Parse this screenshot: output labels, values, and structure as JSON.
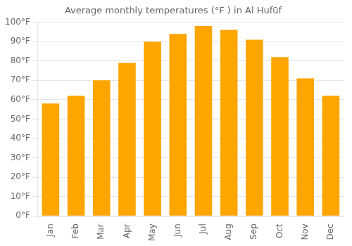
{
  "chart_data": {
    "type": "bar",
    "title": "Average monthly temperatures (°F ) in Al Hufūf",
    "categories": [
      "Jan",
      "Feb",
      "Mar",
      "Apr",
      "May",
      "Jun",
      "Jul",
      "Aug",
      "Sep",
      "Oct",
      "Nov",
      "Dec"
    ],
    "values": [
      58,
      62,
      70,
      79,
      90,
      94,
      98,
      96,
      91,
      82,
      71,
      62
    ],
    "color": "#FFA500",
    "ylim": [
      0,
      100
    ],
    "yticks": [
      {
        "value": 0,
        "label": "0°F"
      },
      {
        "value": 10,
        "label": "10°F"
      },
      {
        "value": 20,
        "label": "20°F"
      },
      {
        "value": 30,
        "label": "30°F"
      },
      {
        "value": 40,
        "label": "40°F"
      },
      {
        "value": 50,
        "label": "50°F"
      },
      {
        "value": 60,
        "label": "60°F"
      },
      {
        "value": 70,
        "label": "70°F"
      },
      {
        "value": 80,
        "label": "80°F"
      },
      {
        "value": 90,
        "label": "90°F"
      },
      {
        "value": 100,
        "label": "100°F"
      }
    ],
    "grid": true
  }
}
